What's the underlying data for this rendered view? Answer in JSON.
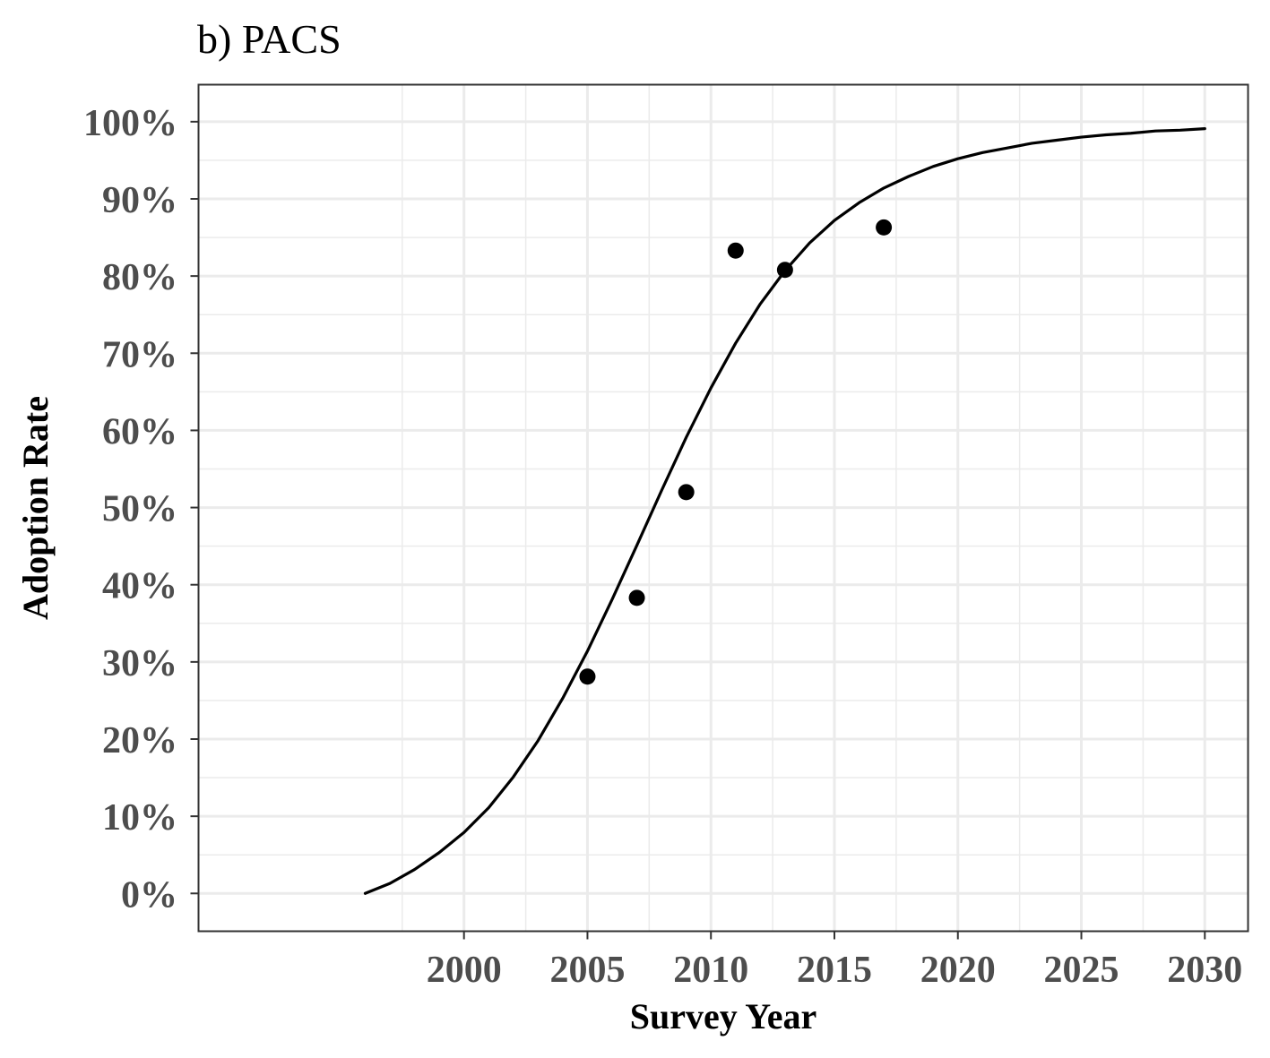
{
  "chart_data": {
    "type": "scatter",
    "title": "b) PACS",
    "xlabel": "Survey Year",
    "ylabel": "Adoption Rate",
    "xlim": [
      1989.25,
      2031.75
    ],
    "ylim": [
      -4.9,
      104.8
    ],
    "x_ticks": [
      2000,
      2005,
      2010,
      2015,
      2020,
      2025,
      2030
    ],
    "y_ticks": [
      0,
      10,
      20,
      30,
      40,
      50,
      60,
      70,
      80,
      90,
      100
    ],
    "y_tick_labels": [
      "0%",
      "10%",
      "20%",
      "30%",
      "40%",
      "50%",
      "60%",
      "70%",
      "80%",
      "90%",
      "100%"
    ],
    "grid": true,
    "legend": "none",
    "points": [
      {
        "x": 2005,
        "y": 28.1
      },
      {
        "x": 2007,
        "y": 38.3
      },
      {
        "x": 2009,
        "y": 52.0
      },
      {
        "x": 2011,
        "y": 83.3
      },
      {
        "x": 2013,
        "y": 80.8
      },
      {
        "x": 2017,
        "y": 86.3
      }
    ],
    "fit_line": {
      "x": [
        1996,
        1997,
        1998,
        1999,
        2000,
        2001,
        2002,
        2003,
        2004,
        2005,
        2006,
        2007,
        2008,
        2009,
        2010,
        2011,
        2012,
        2013,
        2014,
        2015,
        2016,
        2017,
        2018,
        2019,
        2020,
        2021,
        2022,
        2023,
        2024,
        2025,
        2026,
        2027,
        2028,
        2029,
        2030
      ],
      "y": [
        0.0,
        1.3,
        3.1,
        5.3,
        7.9,
        11.1,
        15.1,
        19.8,
        25.3,
        31.4,
        38.1,
        45.1,
        52.2,
        59.1,
        65.5,
        71.3,
        76.4,
        80.7,
        84.3,
        87.2,
        89.5,
        91.4,
        92.9,
        94.2,
        95.2,
        96.0,
        96.6,
        97.2,
        97.6,
        98.0,
        98.3,
        98.5,
        98.8,
        98.9,
        99.1
      ]
    },
    "colors": {
      "line": "#000000",
      "points": "#000000",
      "grid": "#ebebeb",
      "panel_border": "#333333",
      "tick_text": "#4d4d4d"
    }
  }
}
